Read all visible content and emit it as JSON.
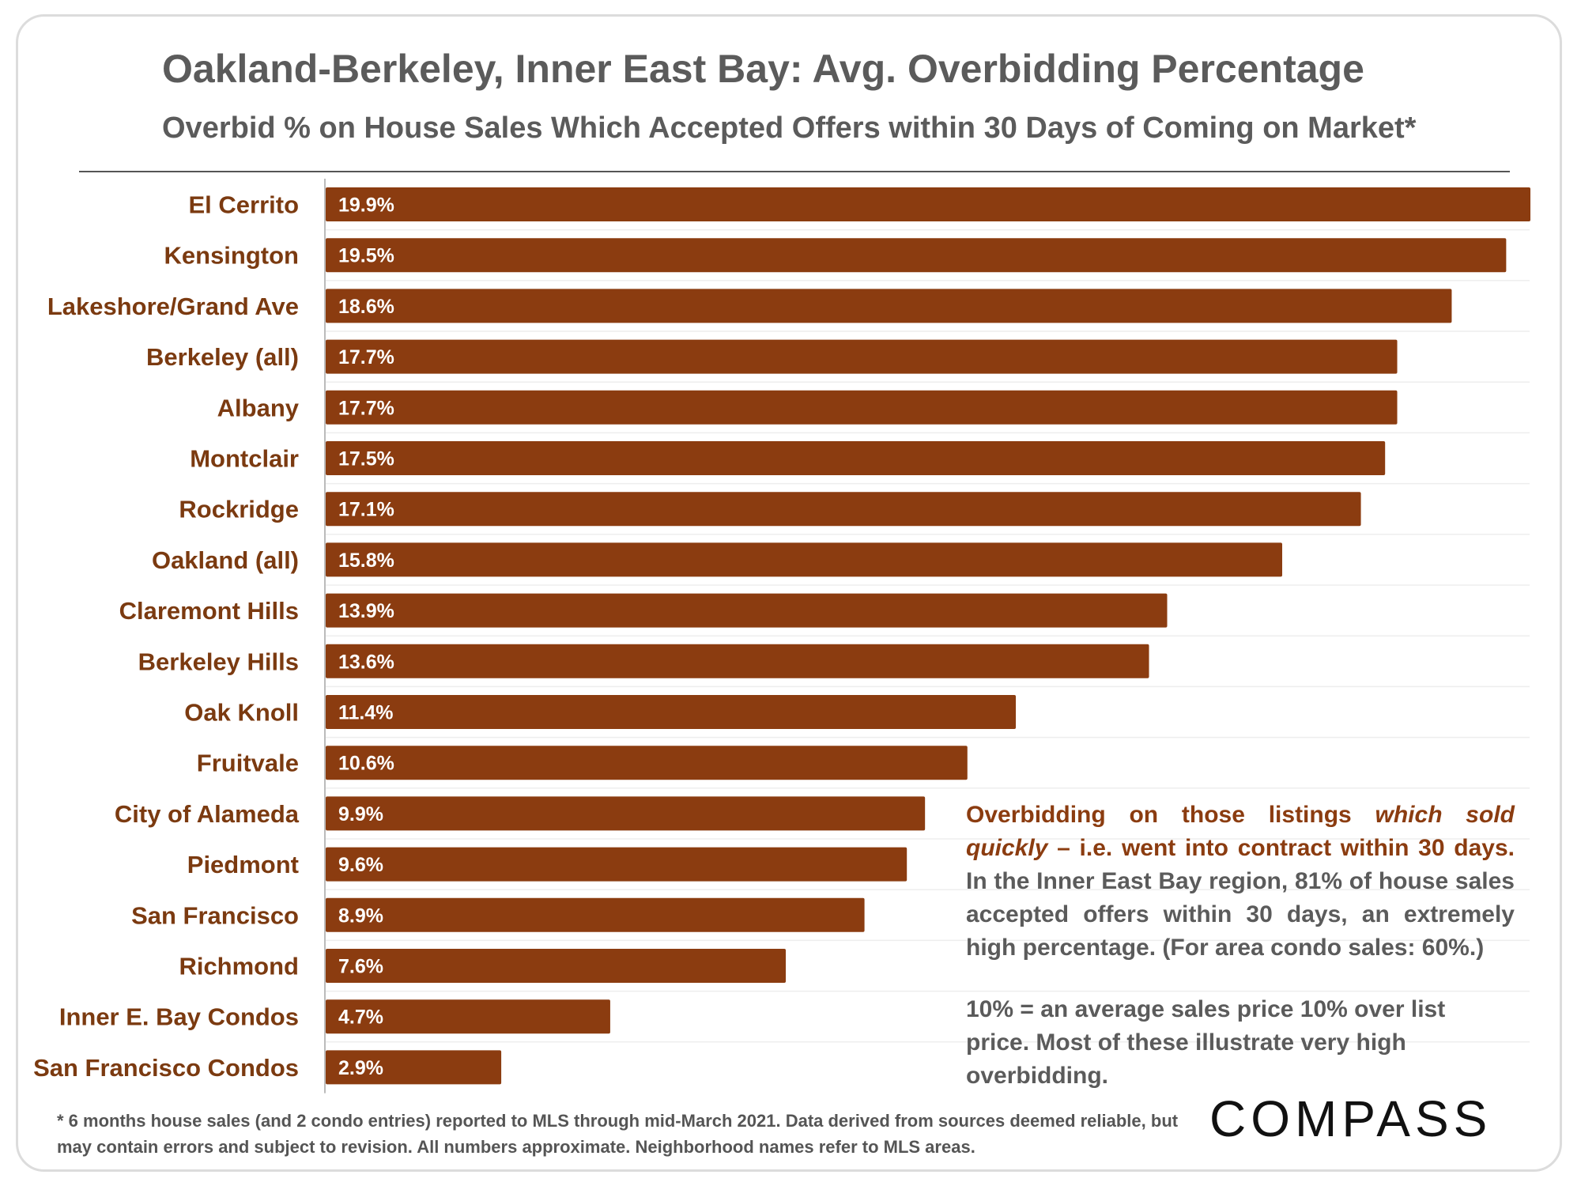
{
  "header": {
    "title": "Oakland-Berkeley, Inner East Bay: Avg. Overbidding Percentage",
    "subtitle": "Overbid % on House Sales Which Accepted Offers within 30 Days of Coming on Market*"
  },
  "chart_data": {
    "type": "bar",
    "orientation": "horizontal",
    "title": "Oakland-Berkeley, Inner East Bay: Avg. Overbidding Percentage",
    "subtitle": "Overbid % on House Sales Which Accepted Offers within 30 Days of Coming on Market*",
    "xlabel": "",
    "ylabel": "",
    "xlim": [
      0,
      19.9
    ],
    "grid": "horizontal light",
    "legend": "none",
    "bar_color": "#8b3c10",
    "categories": [
      "El Cerrito",
      "Kensington",
      "Lakeshore/Grand Ave",
      "Berkeley (all)",
      "Albany",
      "Montclair",
      "Rockridge",
      "Oakland (all)",
      "Claremont Hills",
      "Berkeley Hills",
      "Oak Knoll",
      "Fruitvale",
      "City of Alameda",
      "Piedmont",
      "San Francisco",
      "Richmond",
      "Inner E. Bay Condos",
      "San Francisco Condos"
    ],
    "values": [
      19.9,
      19.5,
      18.6,
      17.7,
      17.7,
      17.5,
      17.1,
      15.8,
      13.9,
      13.6,
      11.4,
      10.6,
      9.9,
      9.6,
      8.9,
      7.6,
      4.7,
      2.9
    ],
    "value_labels": [
      "19.9%",
      "19.5%",
      "18.6%",
      "17.7%",
      "17.7%",
      "17.5%",
      "17.1%",
      "15.8%",
      "13.9%",
      "13.6%",
      "11.4%",
      "10.6%",
      "9.9%",
      "9.6%",
      "8.9%",
      "7.6%",
      "4.7%",
      "2.9%"
    ]
  },
  "note": {
    "p1_start": "Overbidding on those listings ",
    "p1_emphasis": "which sold quickly",
    "p1_mid": " – i.e. went into contract within 30 days.",
    "p1_end": " In the Inner East Bay region, 81% of house sales accepted offers within 30 days, an extremely high percentage. (For area condo sales: 60%.)",
    "p2": "10% = an average sales price 10% over list price. Most of these illustrate very high overbidding."
  },
  "footnote": "* 6 months house sales (and 2 condo entries) reported to MLS through mid-March 2021. Data derived from sources deemed reliable, but may contain errors and subject to revision. All numbers approximate. Neighborhood names refer to MLS areas.",
  "logo": {
    "text": "COMPASS"
  },
  "colors": {
    "bar": "#8b3c10",
    "label": "#7b3a10",
    "text_gray": "#5b5b5b"
  }
}
